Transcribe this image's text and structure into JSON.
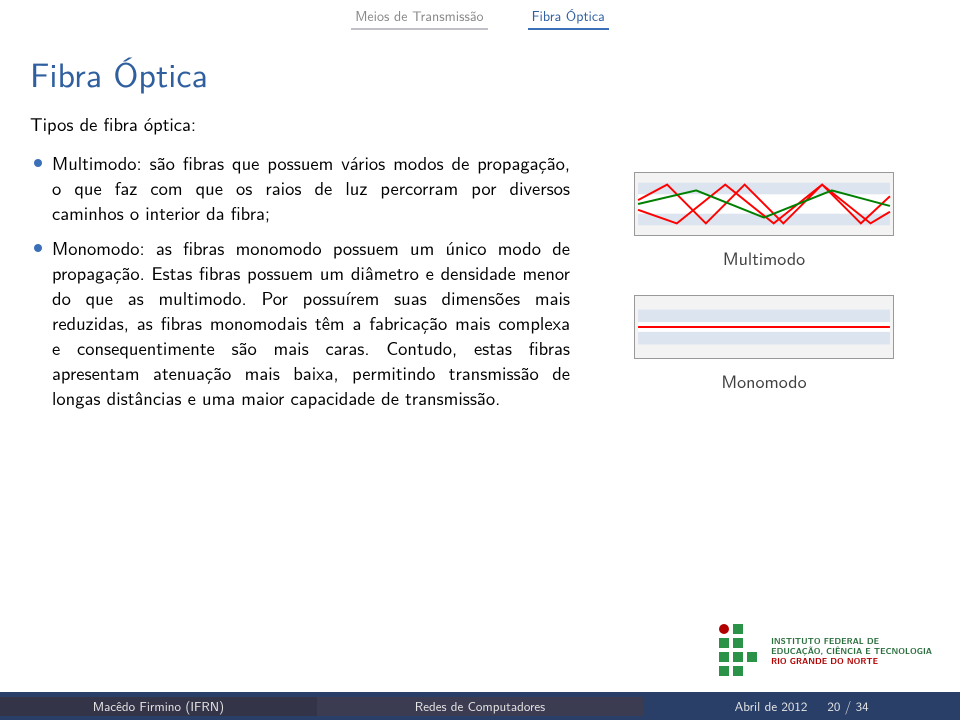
{
  "nav": {
    "item1": "Meios de Transmissão",
    "item2": "Fibra Óptica",
    "colors": {
      "inactive": "#888888",
      "active": "#2f5f9f",
      "bar": "#c0c0c8",
      "barActive": "#3b6fb8"
    }
  },
  "title": "Fibra Óptica",
  "subtitle": "Tipos de fibra óptica:",
  "bullets": [
    "Multimodo: são fibras que possuem vários modos de propagação, o que faz com que os raios de luz percorram por diversos caminhos o interior da fibra;",
    "Monomodo: as fibras monomodo possuem um único modo de propagação. Estas fibras possuem um diâmetro e densidade menor do que as multimodo. Por possuírem suas dimensões mais reduzidas, as fibras monomodais têm a fabricação mais complexa e consequentimente são mais caras. Contudo, estas fibras apresentam atenuação mais baixa, permitindo transmissão de longas distâncias e uma maior capacidade de transmissão."
  ],
  "diagrams": {
    "multimodo": {
      "label": "Multimodo",
      "bg": "#f3f3f3",
      "band": "#dce4ef",
      "core": "#ffffff",
      "ray_colors": [
        "#ff0000",
        "#ff0000",
        "#008000"
      ],
      "border": "#999999"
    },
    "monomodo": {
      "label": "Monomodo",
      "bg": "#f3f3f3",
      "band": "#dce4ef",
      "core": "#ffffff",
      "ray_color": "#ff0000",
      "border": "#999999"
    }
  },
  "logo": {
    "line1": "INSTITUTO FEDERAL DE",
    "line2": "EDUCAÇÃO, CIÊNCIA E TECNOLOGIA",
    "line3": "RIO GRANDE DO NORTE",
    "green": "#2b9348",
    "red": "#b00000"
  },
  "footer": {
    "author": "Macêdo Firmino (IFRN)",
    "center": "Redes de Computadores",
    "date": "Abril de 2012",
    "page": "20 / 34",
    "bgA": "#343448",
    "bgB": "#3b3b52",
    "bgC": "#2a3f68",
    "text": "#e6e6e6"
  }
}
